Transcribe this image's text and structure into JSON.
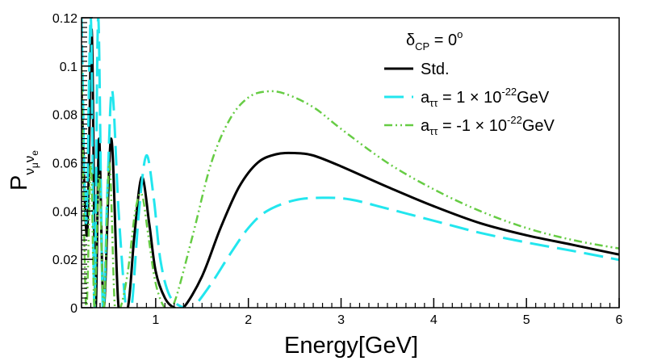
{
  "chart_data": {
    "type": "line",
    "title": "",
    "xlabel": "Energy[GeV]",
    "ylabel": {
      "main": "P",
      "sub1": "ν",
      "sub1_sub": "μ",
      "sub2": "ν",
      "sub2_sub": "e"
    },
    "xlim": [
      0.2,
      6
    ],
    "ylim": [
      0,
      0.12
    ],
    "x_ticks": [
      1,
      2,
      3,
      4,
      5,
      6
    ],
    "y_ticks": [
      0,
      0.02,
      0.04,
      0.06,
      0.08,
      0.1,
      0.12
    ],
    "x_tick_labels": [
      "1",
      "2",
      "3",
      "4",
      "5",
      "6"
    ],
    "y_tick_labels": [
      "0",
      "0.02",
      "0.04",
      "0.06",
      "0.08",
      "0.1",
      "0.12"
    ],
    "grid": false,
    "legend": {
      "position": "top-right",
      "header": {
        "delta": "δ",
        "sub": "CP",
        "rest": " = 0",
        "sup": "o"
      }
    },
    "series": [
      {
        "name": "Std.",
        "label": {
          "text": "Std."
        },
        "color": "#000000",
        "style": "solid",
        "points": [
          [
            0.2,
            0.09
          ],
          [
            0.26,
            0.03
          ],
          [
            0.31,
            0.115
          ],
          [
            0.35,
            0.0
          ],
          [
            0.39,
            0.07
          ],
          [
            0.44,
            0.0
          ],
          [
            0.52,
            0.07
          ],
          [
            0.6,
            0.0
          ],
          [
            0.7,
            0.0
          ],
          [
            0.77,
            0.03
          ],
          [
            0.85,
            0.054
          ],
          [
            0.93,
            0.035
          ],
          [
            1.0,
            0.015
          ],
          [
            1.1,
            0.004
          ],
          [
            1.2,
            0.0
          ],
          [
            1.3,
            0.0
          ],
          [
            1.5,
            0.013
          ],
          [
            1.7,
            0.033
          ],
          [
            1.9,
            0.05
          ],
          [
            2.1,
            0.06
          ],
          [
            2.3,
            0.0635
          ],
          [
            2.5,
            0.064
          ],
          [
            2.7,
            0.063
          ],
          [
            3.0,
            0.0585
          ],
          [
            3.5,
            0.05
          ],
          [
            4.0,
            0.042
          ],
          [
            4.5,
            0.035
          ],
          [
            5.0,
            0.03
          ],
          [
            5.5,
            0.026
          ],
          [
            6.0,
            0.022
          ]
        ]
      },
      {
        "name": "a_ττ = 1 × 10^-22 GeV",
        "label": {
          "main": "a",
          "sub": "ττ",
          "mid": " = 1 × 10",
          "sup": "-22",
          "unit": "GeV"
        },
        "color": "#22e6ee",
        "style": "long-dash",
        "points": [
          [
            0.2,
            0.12
          ],
          [
            0.25,
            0.035
          ],
          [
            0.3,
            0.12
          ],
          [
            0.34,
            0.0
          ],
          [
            0.38,
            0.12
          ],
          [
            0.43,
            0.0
          ],
          [
            0.48,
            0.05
          ],
          [
            0.53,
            0.09
          ],
          [
            0.6,
            0.04
          ],
          [
            0.68,
            0.0
          ],
          [
            0.74,
            0.0
          ],
          [
            0.82,
            0.04
          ],
          [
            0.9,
            0.063
          ],
          [
            0.98,
            0.045
          ],
          [
            1.05,
            0.02
          ],
          [
            1.15,
            0.005
          ],
          [
            1.3,
            0.0
          ],
          [
            1.4,
            0.0
          ],
          [
            1.6,
            0.01
          ],
          [
            1.8,
            0.022
          ],
          [
            2.0,
            0.033
          ],
          [
            2.2,
            0.04
          ],
          [
            2.5,
            0.0445
          ],
          [
            2.8,
            0.0455
          ],
          [
            3.1,
            0.0448
          ],
          [
            3.5,
            0.041
          ],
          [
            4.0,
            0.036
          ],
          [
            4.5,
            0.031
          ],
          [
            5.0,
            0.027
          ],
          [
            5.5,
            0.0235
          ],
          [
            6.0,
            0.0198
          ]
        ]
      },
      {
        "name": "a_ττ = -1 × 10^-22 GeV",
        "label": {
          "main": "a",
          "sub": "ττ",
          "mid": " = -1 × 10",
          "sup": "-22",
          "unit": "GeV"
        },
        "color": "#66cc44",
        "style": "dash-dot-dot",
        "points": [
          [
            0.2,
            0.1
          ],
          [
            0.25,
            0.0
          ],
          [
            0.3,
            0.06
          ],
          [
            0.34,
            0.0
          ],
          [
            0.39,
            0.055
          ],
          [
            0.44,
            0.0
          ],
          [
            0.5,
            0.06
          ],
          [
            0.56,
            0.0
          ],
          [
            0.62,
            0.0
          ],
          [
            0.7,
            0.015
          ],
          [
            0.78,
            0.04
          ],
          [
            0.85,
            0.047
          ],
          [
            0.92,
            0.03
          ],
          [
            1.0,
            0.01
          ],
          [
            1.1,
            0.0
          ],
          [
            1.2,
            0.002
          ],
          [
            1.4,
            0.03
          ],
          [
            1.6,
            0.06
          ],
          [
            1.8,
            0.078
          ],
          [
            2.0,
            0.087
          ],
          [
            2.2,
            0.0895
          ],
          [
            2.4,
            0.0885
          ],
          [
            2.7,
            0.083
          ],
          [
            3.0,
            0.074
          ],
          [
            3.5,
            0.06
          ],
          [
            4.0,
            0.049
          ],
          [
            4.5,
            0.04
          ],
          [
            5.0,
            0.033
          ],
          [
            5.5,
            0.028
          ],
          [
            6.0,
            0.0245
          ]
        ]
      }
    ]
  }
}
